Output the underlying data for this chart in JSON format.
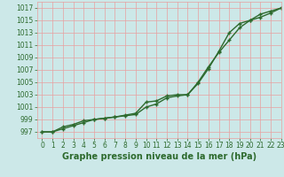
{
  "x": [
    0,
    1,
    2,
    3,
    4,
    5,
    6,
    7,
    8,
    9,
    10,
    11,
    12,
    13,
    14,
    15,
    16,
    17,
    18,
    19,
    20,
    21,
    22,
    23
  ],
  "line1": [
    997,
    997,
    997.8,
    998.2,
    998.8,
    999.0,
    999.2,
    999.4,
    999.6,
    999.8,
    1001.0,
    1001.5,
    1002.5,
    1002.8,
    1003.0,
    1004.8,
    1007.2,
    1010.0,
    1013.0,
    1014.5,
    1015.0,
    1015.5,
    1016.2,
    1017.0
  ],
  "line2": [
    997,
    997,
    997.5,
    998.0,
    998.5,
    999.0,
    999.2,
    999.4,
    999.7,
    1000.0,
    1001.8,
    1002.0,
    1002.8,
    1003.0,
    1003.0,
    1005.0,
    1007.5,
    1009.8,
    1011.8,
    1013.8,
    1015.0,
    1016.0,
    1016.5,
    1017.0
  ],
  "bg_color": "#cce8e8",
  "grid_color": "#e8a0a0",
  "line_color": "#2d6a2d",
  "marker": "+",
  "xlabel": "Graphe pression niveau de la mer (hPa)",
  "ylim": [
    996,
    1018
  ],
  "xlim": [
    -0.5,
    23
  ],
  "yticks": [
    997,
    999,
    1001,
    1003,
    1005,
    1007,
    1009,
    1011,
    1013,
    1015,
    1017
  ],
  "xticks": [
    0,
    1,
    2,
    3,
    4,
    5,
    6,
    7,
    8,
    9,
    10,
    11,
    12,
    13,
    14,
    15,
    16,
    17,
    18,
    19,
    20,
    21,
    22,
    23
  ],
  "tick_fontsize": 5.5,
  "xlabel_fontsize": 7.0,
  "linewidth": 1.0,
  "markersize": 3.5
}
